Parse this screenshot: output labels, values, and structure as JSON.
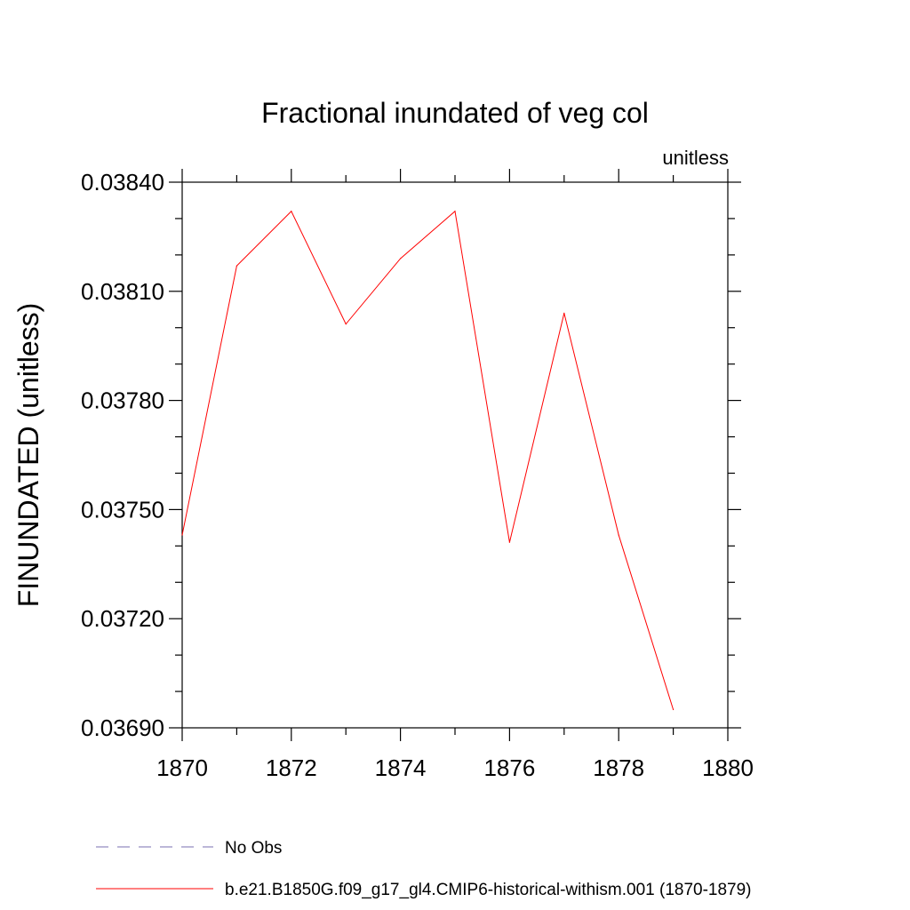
{
  "chart_data": {
    "type": "line",
    "title": "Fractional inundated of veg col",
    "units_label": "unitless",
    "xlabel": "",
    "ylabel": "FINUNDATED  (unitless)",
    "xlim": [
      1870,
      1880
    ],
    "ylim": [
      0.0369,
      0.0384
    ],
    "x_ticks": [
      "1870",
      "1872",
      "1874",
      "1876",
      "1878",
      "1880"
    ],
    "y_ticks": [
      "0.03690",
      "0.03720",
      "0.03750",
      "0.03780",
      "0.03810",
      "0.03840"
    ],
    "grid": false,
    "legend_position": "bottom",
    "series": [
      {
        "name": "No Obs",
        "color": "#7a6fb0",
        "dash": "dashed",
        "x": [],
        "values": []
      },
      {
        "name": "b.e21.B1850G.f09_g17_gl4.CMIP6-historical-withism.001 (1870-1879)",
        "color": "#ff0000",
        "dash": "solid",
        "x": [
          1870,
          1871,
          1872,
          1873,
          1874,
          1875,
          1876,
          1877,
          1878,
          1879
        ],
        "values": [
          0.03743,
          0.03817,
          0.03832,
          0.03801,
          0.03819,
          0.03832,
          0.03741,
          0.03804,
          0.03743,
          0.03695
        ]
      }
    ]
  }
}
